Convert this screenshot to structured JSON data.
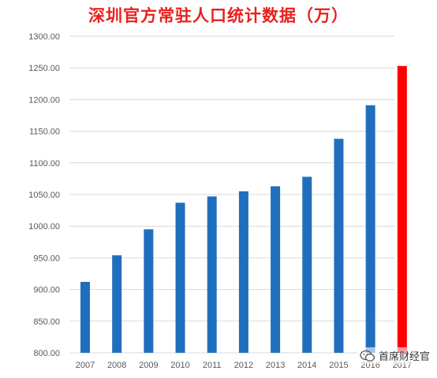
{
  "chart_data": {
    "type": "bar",
    "title": "深圳官方常驻人口统计数据（万）",
    "categories": [
      "2007",
      "2008",
      "2009",
      "2010",
      "2011",
      "2012",
      "2013",
      "2014",
      "2015",
      "2016",
      "2017"
    ],
    "values": [
      912,
      954,
      995,
      1037,
      1047,
      1055,
      1063,
      1078,
      1138,
      1191,
      1253
    ],
    "ylim": [
      800,
      1300
    ],
    "yticks": [
      "800.00",
      "850.00",
      "900.00",
      "950.00",
      "1000.00",
      "1050.00",
      "1100.00",
      "1150.00",
      "1200.00",
      "1250.00",
      "1300.00"
    ],
    "grid": true,
    "colors": {
      "default": "#1f6fbd",
      "highlight": "#ff0000",
      "grid": "#d9d9d9"
    },
    "highlight_index": 10
  },
  "watermark": {
    "text": "首席财经官",
    "icon": "wechat-icon"
  }
}
